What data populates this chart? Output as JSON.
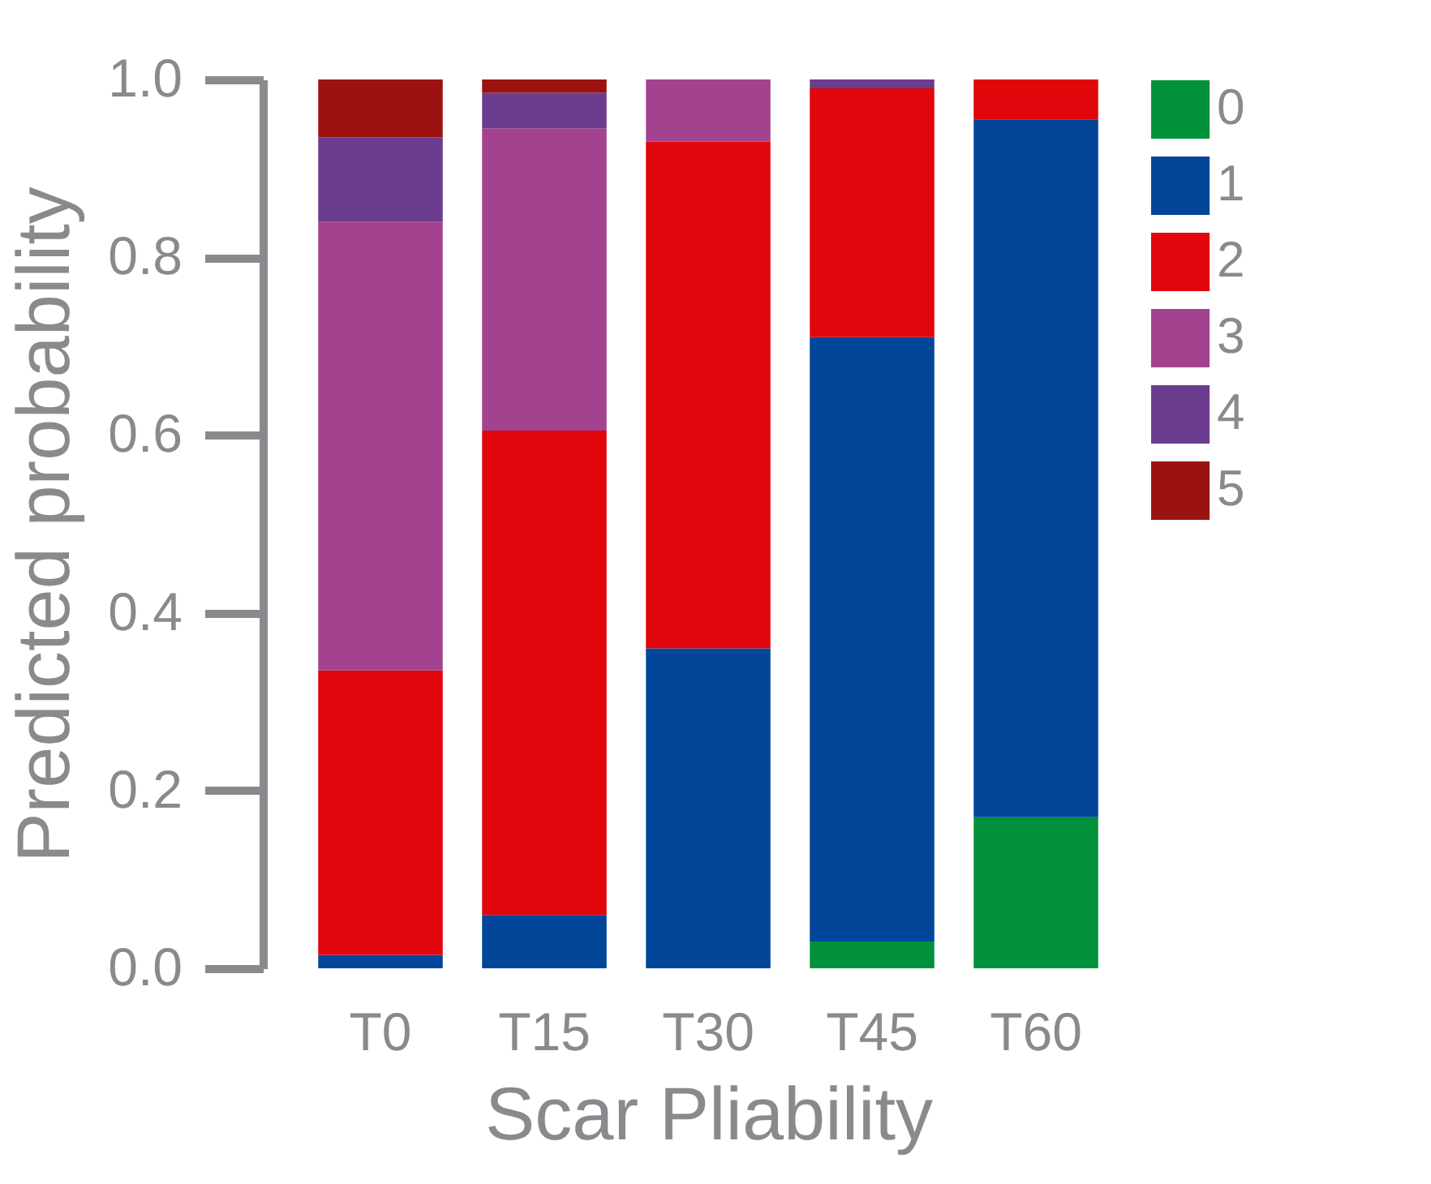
{
  "chart_data": {
    "type": "bar",
    "stacked": true,
    "xlabel": "Scar Pliability",
    "ylabel": "Predicted probability",
    "categories": [
      "T0",
      "T15",
      "T30",
      "T45",
      "T60"
    ],
    "series": [
      {
        "name": "0",
        "color": "#00913a",
        "values": [
          0,
          0,
          0,
          0.03,
          0.17
        ]
      },
      {
        "name": "1",
        "color": "#024699",
        "values": [
          0.015,
          0.06,
          0.36,
          0.68,
          0.785
        ]
      },
      {
        "name": "2",
        "color": "#e0060b",
        "values": [
          0.32,
          0.545,
          0.57,
          0.28,
          0.045
        ]
      },
      {
        "name": "3",
        "color": "#a3428e",
        "values": [
          0.505,
          0.34,
          0.07,
          0,
          0
        ]
      },
      {
        "name": "4",
        "color": "#6c3d8f",
        "values": [
          0.095,
          0.04,
          0,
          0.01,
          0
        ]
      },
      {
        "name": "5",
        "color": "#9a1310",
        "values": [
          0.065,
          0.015,
          0,
          0,
          0
        ]
      }
    ],
    "ylim": [
      0,
      1
    ],
    "yticks": [
      {
        "value": 0,
        "label": "0.0"
      },
      0.2,
      0.4,
      0.6,
      0.8,
      {
        "value": 1,
        "label": "1.0"
      }
    ],
    "grid": false,
    "legend": "top right"
  }
}
